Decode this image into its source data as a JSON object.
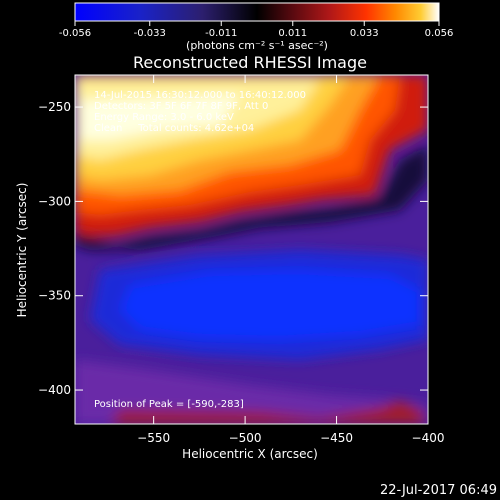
{
  "colorbar": {
    "ticks": [
      "-0.056",
      "-0.033",
      "-0.011",
      "0.011",
      "0.033",
      "0.056"
    ],
    "tick_values": [
      -0.056,
      -0.033,
      -0.011,
      0.011,
      0.033,
      0.056
    ],
    "unit_label": "(photons cm⁻² s⁻¹ asec⁻²)",
    "colors": [
      "#0000ff",
      "#1a22c8",
      "#2c1f6e",
      "#000000",
      "#5b0a10",
      "#b01818",
      "#ff3300",
      "#ff8800",
      "#ffcc33",
      "#ffffff"
    ]
  },
  "chart_data": {
    "type": "heatmap",
    "title": "Reconstructed RHESSI Image",
    "xlabel": "Heliocentric X (arcsec)",
    "ylabel": "Heliocentric Y (arcsec)",
    "xlim": [
      -593,
      -400
    ],
    "ylim": [
      -418,
      -233
    ],
    "x_ticks": [
      {
        "value": -550,
        "label": "−550"
      },
      {
        "value": -500,
        "label": "−500"
      },
      {
        "value": -450,
        "label": "−450"
      },
      {
        "value": -400,
        "label": "−400"
      }
    ],
    "y_ticks": [
      {
        "value": -250,
        "label": "−250"
      },
      {
        "value": -300,
        "label": "−300"
      },
      {
        "value": -350,
        "label": "−350"
      },
      {
        "value": -400,
        "label": "−400"
      }
    ],
    "info_lines": [
      "14-Jul-2015 16:30:12.000 to 16:40:12.000",
      "Detectors: 3F 5F 6F 7F 8F 9F, Att 0",
      "Energy Range: 3.0 - 6.0 keV",
      "Clean     Total counts: 4.62e+04"
    ],
    "peak_label": "Position of Peak = [-590,-283]",
    "peak": {
      "x": -590,
      "y": -283
    }
  },
  "footer": {
    "timestamp": "22-Jul-2017 06:49"
  }
}
